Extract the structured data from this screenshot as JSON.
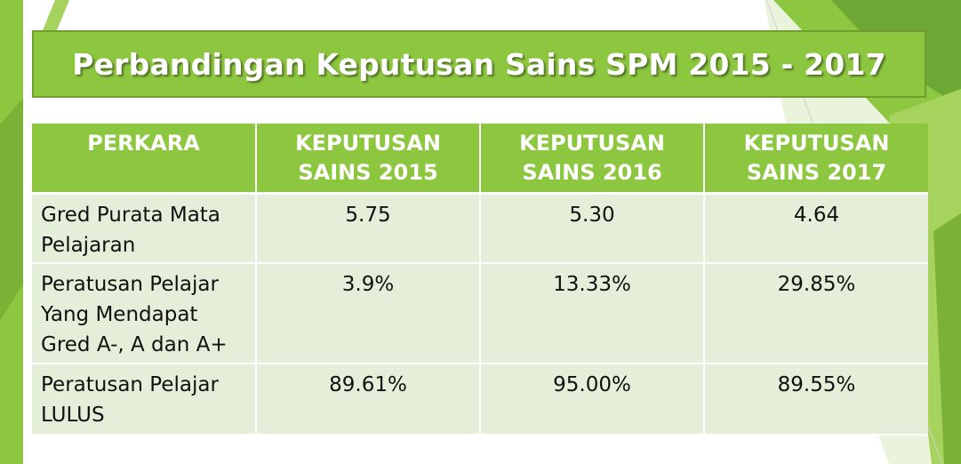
{
  "title": "Perbandingan Keputusan Sains SPM 2015 - 2017",
  "colors": {
    "accent_green": "#8dc63f",
    "row_fill": "#e5eed8",
    "title_text": "#ffffff"
  },
  "table": {
    "headers": [
      "PERKARA",
      "KEPUTUSAN SAINS 2015",
      "KEPUTUSAN SAINS 2016",
      "KEPUTUSAN SAINS 2017"
    ],
    "rows": [
      {
        "label": "Gred Purata Mata Pelajaran",
        "v2015": "5.75",
        "v2016": "5.30",
        "v2017": "4.64"
      },
      {
        "label": "Peratusan Pelajar Yang Mendapat Gred A-, A dan A+",
        "v2015": "3.9%",
        "v2016": "13.33%",
        "v2017": "29.85%"
      },
      {
        "label": "Peratusan Pelajar LULUS",
        "v2015": "89.61%",
        "v2016": "95.00%",
        "v2017": "89.55%"
      }
    ]
  }
}
